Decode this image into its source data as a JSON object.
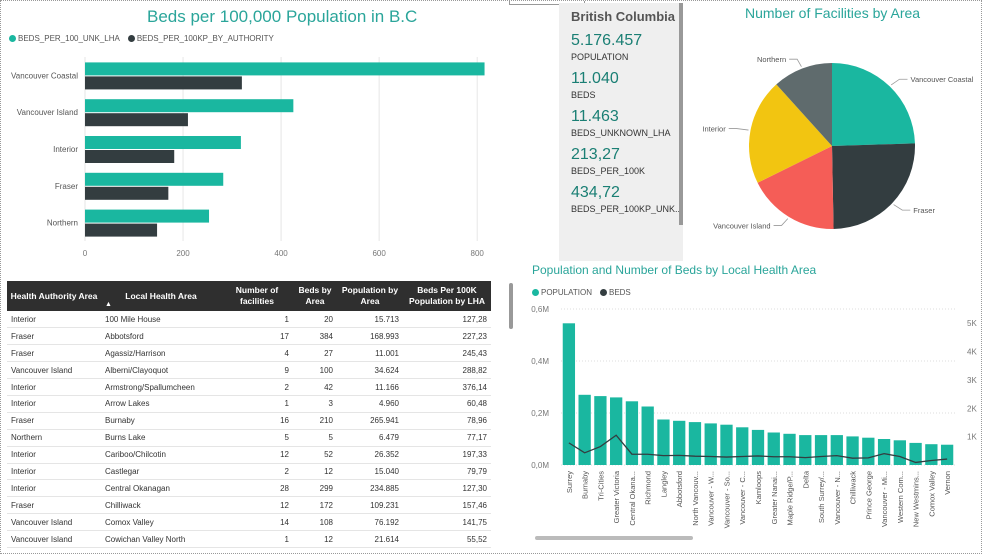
{
  "beds_chart": {
    "title": "Beds per 100,000 Population in B.C",
    "legend": [
      {
        "label": "BEDS_PER_100_UNK_LHA",
        "color": "#1ab7a0"
      },
      {
        "label": "BEDS_PER_100KP_BY_AUTHORITY",
        "color": "#333d40"
      }
    ],
    "x_ticks": [
      "0",
      "200",
      "400",
      "600",
      "800"
    ]
  },
  "kpi_card": {
    "title": "British Columbia",
    "items": [
      {
        "value": "5.176.457",
        "label": "POPULATION"
      },
      {
        "value": "11.040",
        "label": "BEDS"
      },
      {
        "value": "11.463",
        "label": "BEDS_UNKNOWN_LHA"
      },
      {
        "value": "213,27",
        "label": "BEDS_PER_100K"
      },
      {
        "value": "434,72",
        "label": "BEDS_PER_100KP_UNK..."
      }
    ]
  },
  "pie_chart": {
    "title": "Number of Facilities by Area"
  },
  "table": {
    "headers": [
      "Health Authority Area",
      "Local Health Area",
      "Number of facilities",
      "Beds by Area",
      "Population by Area",
      "Beds Per 100K Population by LHA"
    ],
    "rows": [
      [
        "Interior",
        "100 Mile House",
        "1",
        "20",
        "15.713",
        "127,28"
      ],
      [
        "Fraser",
        "Abbotsford",
        "17",
        "384",
        "168.993",
        "227,23"
      ],
      [
        "Fraser",
        "Agassiz/Harrison",
        "4",
        "27",
        "11.001",
        "245,43"
      ],
      [
        "Vancouver Island",
        "Alberni/Clayoquot",
        "9",
        "100",
        "34.624",
        "288,82"
      ],
      [
        "Interior",
        "Armstrong/Spallumcheen",
        "2",
        "42",
        "11.166",
        "376,14"
      ],
      [
        "Interior",
        "Arrow Lakes",
        "1",
        "3",
        "4.960",
        "60,48"
      ],
      [
        "Fraser",
        "Burnaby",
        "16",
        "210",
        "265.941",
        "78,96"
      ],
      [
        "Northern",
        "Burns Lake",
        "5",
        "5",
        "6.479",
        "77,17"
      ],
      [
        "Interior",
        "Cariboo/Chilcotin",
        "12",
        "52",
        "26.352",
        "197,33"
      ],
      [
        "Interior",
        "Castlegar",
        "2",
        "12",
        "15.040",
        "79,79"
      ],
      [
        "Interior",
        "Central Okanagan",
        "28",
        "299",
        "234.885",
        "127,30"
      ],
      [
        "Fraser",
        "Chilliwack",
        "12",
        "172",
        "109.231",
        "157,46"
      ],
      [
        "Vancouver Island",
        "Comox Valley",
        "14",
        "108",
        "76.192",
        "141,75"
      ],
      [
        "Vancouver Island",
        "Cowichan Valley North",
        "1",
        "12",
        "21.614",
        "55,52"
      ]
    ]
  },
  "pop_chart": {
    "title": "Population and Number of Beds by Local Health Area",
    "legend": [
      {
        "label": "POPULATION",
        "color": "#1ab7a0"
      },
      {
        "label": "BEDS",
        "color": "#333d40"
      }
    ],
    "y_left_ticks": [
      "0,0M",
      "0,2M",
      "0,4M",
      "0,6M"
    ],
    "y_right_ticks": [
      "1K",
      "2K",
      "3K",
      "4K",
      "5K"
    ]
  },
  "chart_data": [
    {
      "type": "bar",
      "orientation": "horizontal",
      "title": "Beds per 100,000 Population in B.C",
      "categories": [
        "Vancouver Coastal",
        "Vancouver Island",
        "Interior",
        "Fraser",
        "Northern"
      ],
      "series": [
        {
          "name": "BEDS_PER_100_UNK_LHA",
          "values": [
            815,
            425,
            318,
            282,
            253
          ]
        },
        {
          "name": "BEDS_PER_100KP_BY_AUTHORITY",
          "values": [
            320,
            210,
            182,
            170,
            147
          ]
        }
      ],
      "xlim": [
        0,
        820
      ],
      "legend": "top-left"
    },
    {
      "type": "pie",
      "title": "Number of Facilities by Area",
      "labels": [
        "Vancouver Coastal",
        "Fraser",
        "Vancouver Island",
        "Interior",
        "Northern"
      ],
      "values": [
        24.5,
        25.2,
        18.0,
        20.6,
        11.7
      ],
      "colors": [
        "#1ab7a0",
        "#333d40",
        "#f55d57",
        "#f2c511",
        "#5f6b6d"
      ]
    },
    {
      "type": "bar",
      "title": "Population and Number of Beds by Local Health Area",
      "categories": [
        "Surrey",
        "Burnaby",
        "Tri-Cities",
        "Greater Victoria",
        "Central Okana...",
        "Richmond",
        "Langley",
        "Abbotsford",
        "North Vancouv...",
        "Vancouver - W...",
        "Vancouver - So...",
        "Vancouver - C...",
        "Kamloops",
        "Greater Nanai...",
        "Maple Ridge/P...",
        "Delta",
        "South Surrey/...",
        "Vancouver - N...",
        "Chilliwack",
        "Prince George",
        "Vancouver - Mi...",
        "Western Com...",
        "New Westmins...",
        "Comox Valley",
        "Vernon"
      ],
      "series": [
        {
          "name": "POPULATION",
          "axis": "left",
          "values": [
            545000,
            270000,
            265000,
            260000,
            245000,
            225000,
            175000,
            170000,
            165000,
            160000,
            155000,
            145000,
            135000,
            125000,
            120000,
            115000,
            115000,
            115000,
            110000,
            105000,
            100000,
            95000,
            85000,
            80000,
            78000
          ]
        },
        {
          "name": "BEDS",
          "axis": "right",
          "values": [
            780,
            430,
            650,
            1050,
            380,
            380,
            330,
            340,
            310,
            300,
            280,
            300,
            320,
            290,
            290,
            260,
            300,
            330,
            240,
            250,
            400,
            300,
            90,
            160,
            210
          ]
        }
      ],
      "ylim_left": [
        0,
        600000
      ],
      "ylim_right": [
        0,
        5500
      ],
      "legend": "top-left"
    }
  ]
}
